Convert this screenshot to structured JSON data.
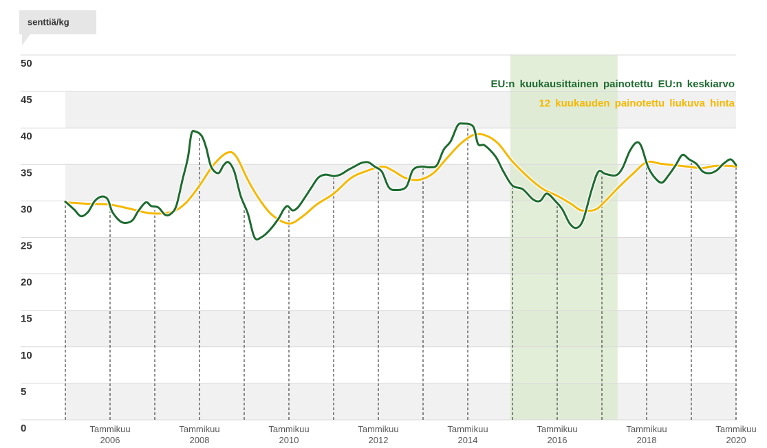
{
  "chart_data": {
    "type": "line",
    "y_label": "senttiä/kg",
    "xlim": [
      2005,
      2020
    ],
    "ylim": [
      0,
      50
    ],
    "yticks": [
      0,
      5,
      10,
      15,
      20,
      25,
      30,
      35,
      40,
      45,
      50
    ],
    "xticks": [
      {
        "value": 2006,
        "label": "Tammikuu 2006"
      },
      {
        "value": 2008,
        "label": "Tammikuu 2008"
      },
      {
        "value": 2010,
        "label": "Tammikuu 2010"
      },
      {
        "value": 2012,
        "label": "Tammikuu 2012"
      },
      {
        "value": 2014,
        "label": "Tammikuu 2014"
      },
      {
        "value": 2016,
        "label": "Tammikuu 2016"
      },
      {
        "value": 2018,
        "label": "Tammikuu 2018"
      },
      {
        "value": 2020,
        "label": "Tammikuu 2020"
      }
    ],
    "xgrid": [
      2005,
      2006,
      2007,
      2008,
      2009,
      2010,
      2011,
      2012,
      2013,
      2014,
      2015,
      2016,
      2017,
      2018,
      2019,
      2020
    ],
    "shade": [
      2014.95,
      2017.35
    ],
    "shade_color": "#d9e8cc",
    "band_color": "#f1f1f1",
    "grid": true,
    "legend": "upper right",
    "series": [
      {
        "name": "EU:n kuukausittainen painotettu EU:n keskiarvo",
        "color": "#1e6b30",
        "x": [
          2005.0,
          2005.2,
          2005.35,
          2005.51,
          2005.66,
          2005.82,
          2005.95,
          2006.05,
          2006.23,
          2006.38,
          2006.51,
          2006.63,
          2006.8,
          2006.92,
          2007.08,
          2007.23,
          2007.35,
          2007.48,
          2007.62,
          2007.74,
          2007.82,
          2007.91,
          2008.05,
          2008.15,
          2008.26,
          2008.42,
          2008.54,
          2008.65,
          2008.78,
          2008.92,
          2009.08,
          2009.23,
          2009.38,
          2009.57,
          2009.77,
          2009.88,
          2009.97,
          2010.08,
          2010.2,
          2010.35,
          2010.51,
          2010.66,
          2010.82,
          2011.0,
          2011.15,
          2011.31,
          2011.46,
          2011.62,
          2011.77,
          2011.92,
          2012.08,
          2012.23,
          2012.38,
          2012.62,
          2012.77,
          2012.95,
          2013.15,
          2013.31,
          2013.46,
          2013.62,
          2013.77,
          2013.89,
          2014.12,
          2014.23,
          2014.38,
          2014.62,
          2014.8,
          2015.0,
          2015.23,
          2015.46,
          2015.62,
          2015.77,
          2015.97,
          2016.12,
          2016.28,
          2016.43,
          2016.58,
          2016.77,
          2016.92,
          2017.08,
          2017.31,
          2017.46,
          2017.62,
          2017.77,
          2017.88,
          2018.03,
          2018.18,
          2018.34,
          2018.49,
          2018.65,
          2018.8,
          2018.95,
          2019.11,
          2019.26,
          2019.42,
          2019.57,
          2019.72,
          2019.88,
          2020.0
        ],
        "values": [
          29.9,
          28.8,
          27.9,
          28.5,
          30.0,
          30.6,
          30.2,
          28.5,
          27.2,
          27.0,
          27.4,
          28.6,
          29.8,
          29.3,
          29.1,
          28.1,
          28.2,
          29.3,
          32.9,
          35.9,
          39.2,
          39.5,
          38.9,
          37.3,
          34.7,
          33.8,
          34.9,
          35.3,
          34.0,
          30.7,
          28.3,
          25.0,
          25.0,
          26.0,
          27.6,
          28.8,
          29.3,
          28.7,
          29.1,
          30.4,
          31.9,
          33.2,
          33.6,
          33.4,
          33.6,
          34.2,
          34.7,
          35.2,
          35.3,
          34.7,
          34.0,
          31.9,
          31.5,
          31.9,
          34.2,
          34.7,
          34.6,
          34.9,
          37.0,
          38.2,
          40.3,
          40.6,
          40.2,
          37.8,
          37.6,
          36.1,
          34.0,
          32.1,
          31.6,
          30.2,
          30.0,
          31.0,
          29.9,
          28.8,
          26.9,
          26.3,
          27.4,
          31.5,
          34.0,
          33.7,
          33.5,
          34.5,
          36.8,
          38.0,
          37.5,
          34.7,
          33.2,
          32.5,
          33.5,
          34.9,
          36.3,
          35.7,
          35.1,
          34.0,
          33.8,
          34.2,
          35.1,
          35.7,
          34.9
        ]
      },
      {
        "name": "12 kuukauden painotettu liukuva hinta",
        "color": "#f5b800",
        "x": [
          2005.0,
          2005.54,
          2006.0,
          2006.46,
          2006.92,
          2007.38,
          2007.69,
          2008.0,
          2008.31,
          2008.62,
          2008.82,
          2009.08,
          2009.31,
          2009.62,
          2010.0,
          2010.31,
          2010.62,
          2011.0,
          2011.38,
          2011.69,
          2012.08,
          2012.31,
          2012.62,
          2012.92,
          2013.23,
          2013.54,
          2013.85,
          2014.15,
          2014.43,
          2014.69,
          2015.0,
          2015.38,
          2015.69,
          2016.0,
          2016.31,
          2016.54,
          2016.85,
          2017.08,
          2017.38,
          2017.69,
          2018.0,
          2018.31,
          2018.62,
          2018.92,
          2019.23,
          2019.54,
          2019.85,
          2020.0
        ],
        "values": [
          29.8,
          29.6,
          29.5,
          28.9,
          28.3,
          28.5,
          29.7,
          32.1,
          34.9,
          36.6,
          36.1,
          32.9,
          30.5,
          28.1,
          26.9,
          27.9,
          29.5,
          31.0,
          33.1,
          34.0,
          34.7,
          34.2,
          33.1,
          32.9,
          33.8,
          35.9,
          37.9,
          39.1,
          38.9,
          37.8,
          35.4,
          33.1,
          31.6,
          30.7,
          29.6,
          28.7,
          28.8,
          30.0,
          31.9,
          33.7,
          35.3,
          35.1,
          34.9,
          34.7,
          34.5,
          34.8,
          34.8,
          34.7
        ]
      }
    ]
  }
}
